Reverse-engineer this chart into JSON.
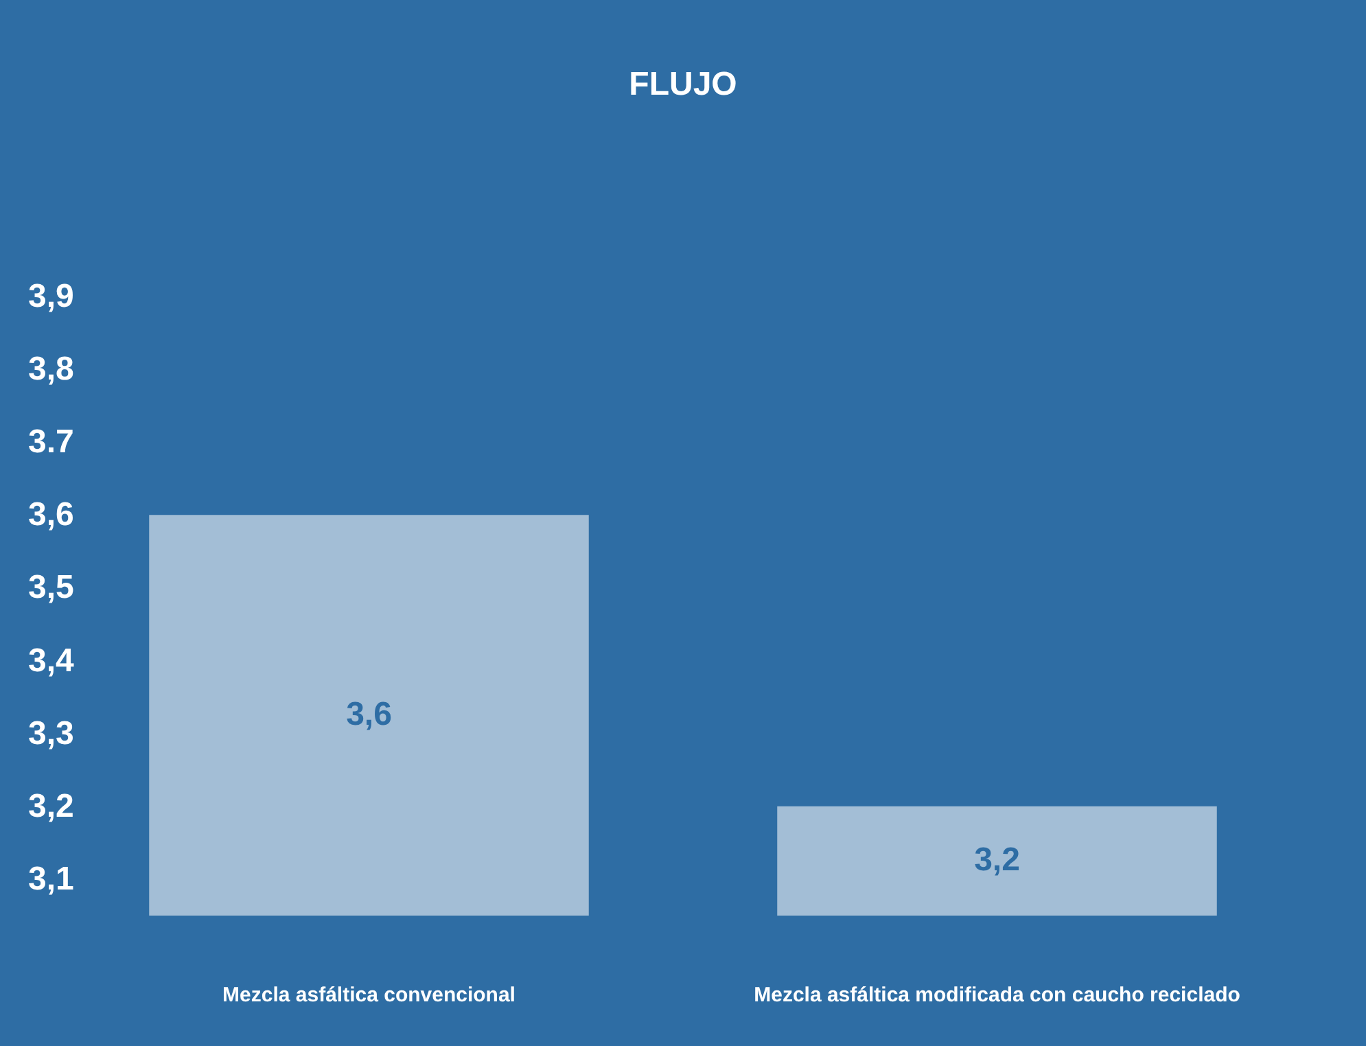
{
  "chart_data": {
    "type": "bar",
    "title": "FLUJO",
    "categories": [
      "Mezcla asfáltica convencional",
      "Mezcla asfáltica modificada con caucho reciclado"
    ],
    "values": [
      3.6,
      3.2
    ],
    "color": "#a3bed6",
    "value_labels": [
      "3,6",
      "3,2"
    ],
    "ylim": [
      3.05,
      3.9
    ],
    "yticks": [
      {
        "value": 3.1,
        "label": "3,1"
      },
      {
        "value": 3.2,
        "label": "3,2"
      },
      {
        "value": 3.3,
        "label": "3,3"
      },
      {
        "value": 3.4,
        "label": "3,4"
      },
      {
        "value": 3.5,
        "label": "3,5"
      },
      {
        "value": 3.6,
        "label": "3,6"
      },
      {
        "value": 3.7,
        "label": "3.7"
      },
      {
        "value": 3.8,
        "label": "3,8"
      },
      {
        "value": 3.9,
        "label": "3,9"
      }
    ],
    "grid": false
  }
}
